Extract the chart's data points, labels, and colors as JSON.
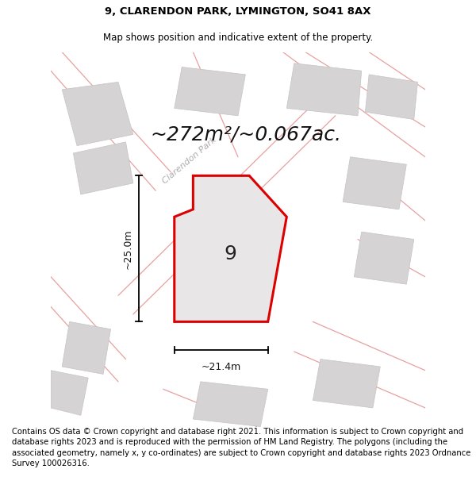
{
  "title": "9, CLARENDON PARK, LYMINGTON, SO41 8AX",
  "subtitle": "Map shows position and indicative extent of the property.",
  "area_label": "~272m²/~0.067ac.",
  "plot_number": "9",
  "width_label": "~21.4m",
  "height_label": "~25.0m",
  "road_label": "Clarendon Park",
  "footer_text": "Contains OS data © Crown copyright and database right 2021. This information is subject to Crown copyright and database rights 2023 and is reproduced with the permission of HM Land Registry. The polygons (including the associated geometry, namely x, y co-ordinates) are subject to Crown copyright and database rights 2023 Ordnance Survey 100026316.",
  "bg_color": "#f2f0f0",
  "plot_fill": "#e8e6e6",
  "plot_edge": "#dd0000",
  "road_lines_color": "#e8a0a0",
  "building_fill": "#d5d3d3",
  "building_edge": "#c5c3c3",
  "title_fontsize": 9.5,
  "subtitle_fontsize": 8.5,
  "footer_fontsize": 7.2,
  "area_fontsize": 18,
  "plot_num_fontsize": 18,
  "road_label_fontsize": 8,
  "dim_fontsize": 9
}
